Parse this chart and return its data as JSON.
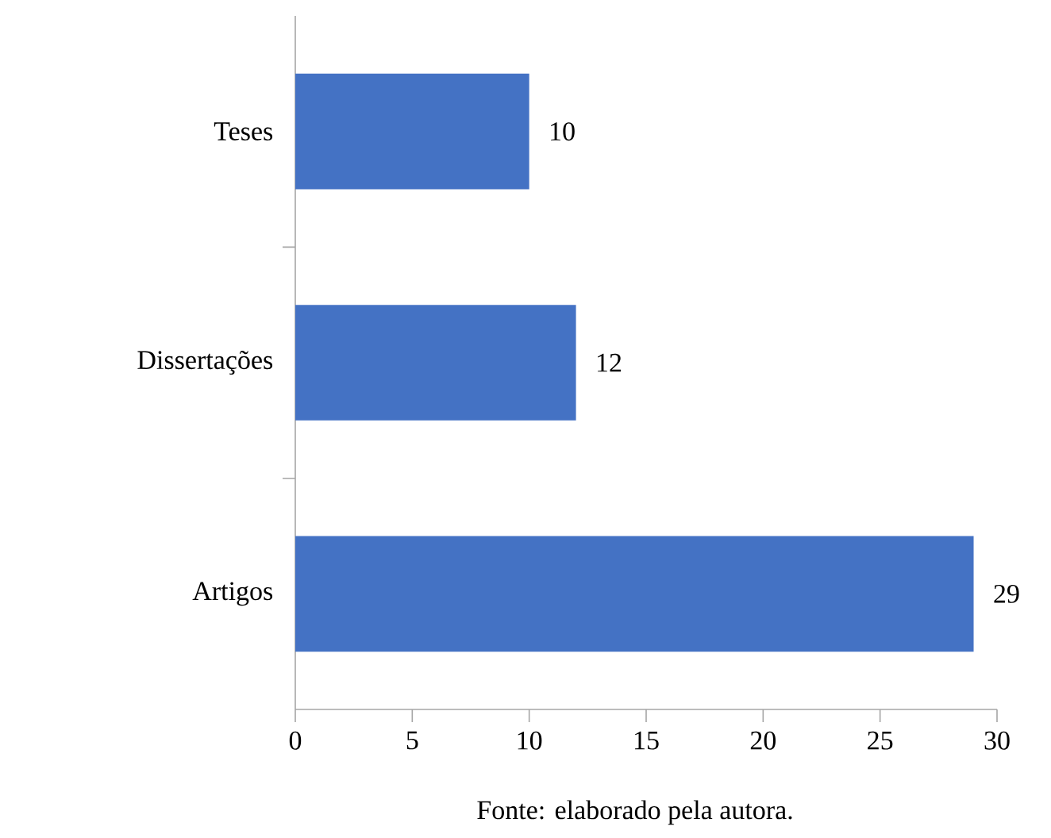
{
  "chart_data": {
    "type": "bar",
    "orientation": "horizontal",
    "categories": [
      "Teses",
      "Dissertações",
      "Artigos"
    ],
    "values": [
      10,
      12,
      29
    ],
    "color": "#4472c4",
    "xlim": [
      0,
      30
    ],
    "xticks": [
      0,
      5,
      10,
      15,
      20,
      25,
      30
    ],
    "data_labels": true,
    "grid": false,
    "annotations": [
      "Fonte: elaborado pela autora."
    ]
  }
}
